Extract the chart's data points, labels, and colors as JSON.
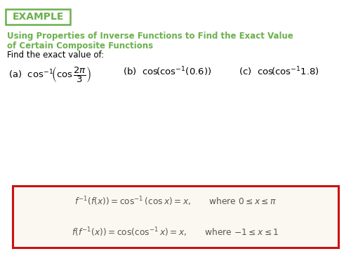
{
  "bg_color": "#ffffff",
  "example_box_color": "#6ab04c",
  "example_text": "EXAMPLE",
  "example_text_color": "#6ab04c",
  "title_line1": "Using Properties of Inverse Functions to Find the Exact Value",
  "title_line2": "of Certain Composite Functions",
  "title_color": "#6ab04c",
  "subtitle": "Find the exact value of:",
  "subtitle_color": "#000000",
  "box_border_color": "#cc1111",
  "box_bg_color": "#faf8f0",
  "box_text_color": "#555555",
  "parts_color": "#000000"
}
